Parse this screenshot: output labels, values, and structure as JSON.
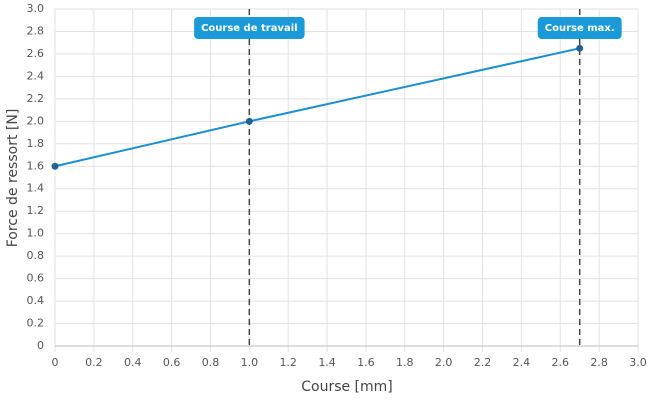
{
  "chart_data": {
    "type": "line",
    "x_label": "Course [mm]",
    "y_label": "Force de ressort [N]",
    "x": [
      0,
      1.0,
      2.7
    ],
    "series": [
      {
        "name": "Force de ressort",
        "color": "#1a8fd1",
        "marker_color": "#1f6391",
        "values": [
          1.6,
          2.0,
          2.65
        ]
      }
    ],
    "annotations": [
      {
        "x": 1.0,
        "label": "Course de travail"
      },
      {
        "x": 2.7,
        "label": "Course max."
      }
    ],
    "annotation_color": "#1a9ad6",
    "xlim": [
      0,
      3.0
    ],
    "ylim": [
      0,
      3.0
    ],
    "xticks": [
      0,
      0.2,
      0.4,
      0.6,
      0.8,
      {
        "value": 1,
        "label": "1.0"
      },
      1.2,
      1.4,
      1.6,
      1.8,
      {
        "value": 2,
        "label": "2.0"
      },
      2.2,
      2.4,
      2.6,
      2.8,
      {
        "value": 3,
        "label": "3.0"
      }
    ],
    "yticks": [
      0,
      0.2,
      0.4,
      0.6,
      0.8,
      {
        "value": 1,
        "label": "1.0"
      },
      1.2,
      1.4,
      1.6,
      1.8,
      {
        "value": 2,
        "label": "2.0"
      },
      2.2,
      2.4,
      2.6,
      2.8,
      {
        "value": 3,
        "label": "3.0"
      }
    ],
    "grid": true
  }
}
